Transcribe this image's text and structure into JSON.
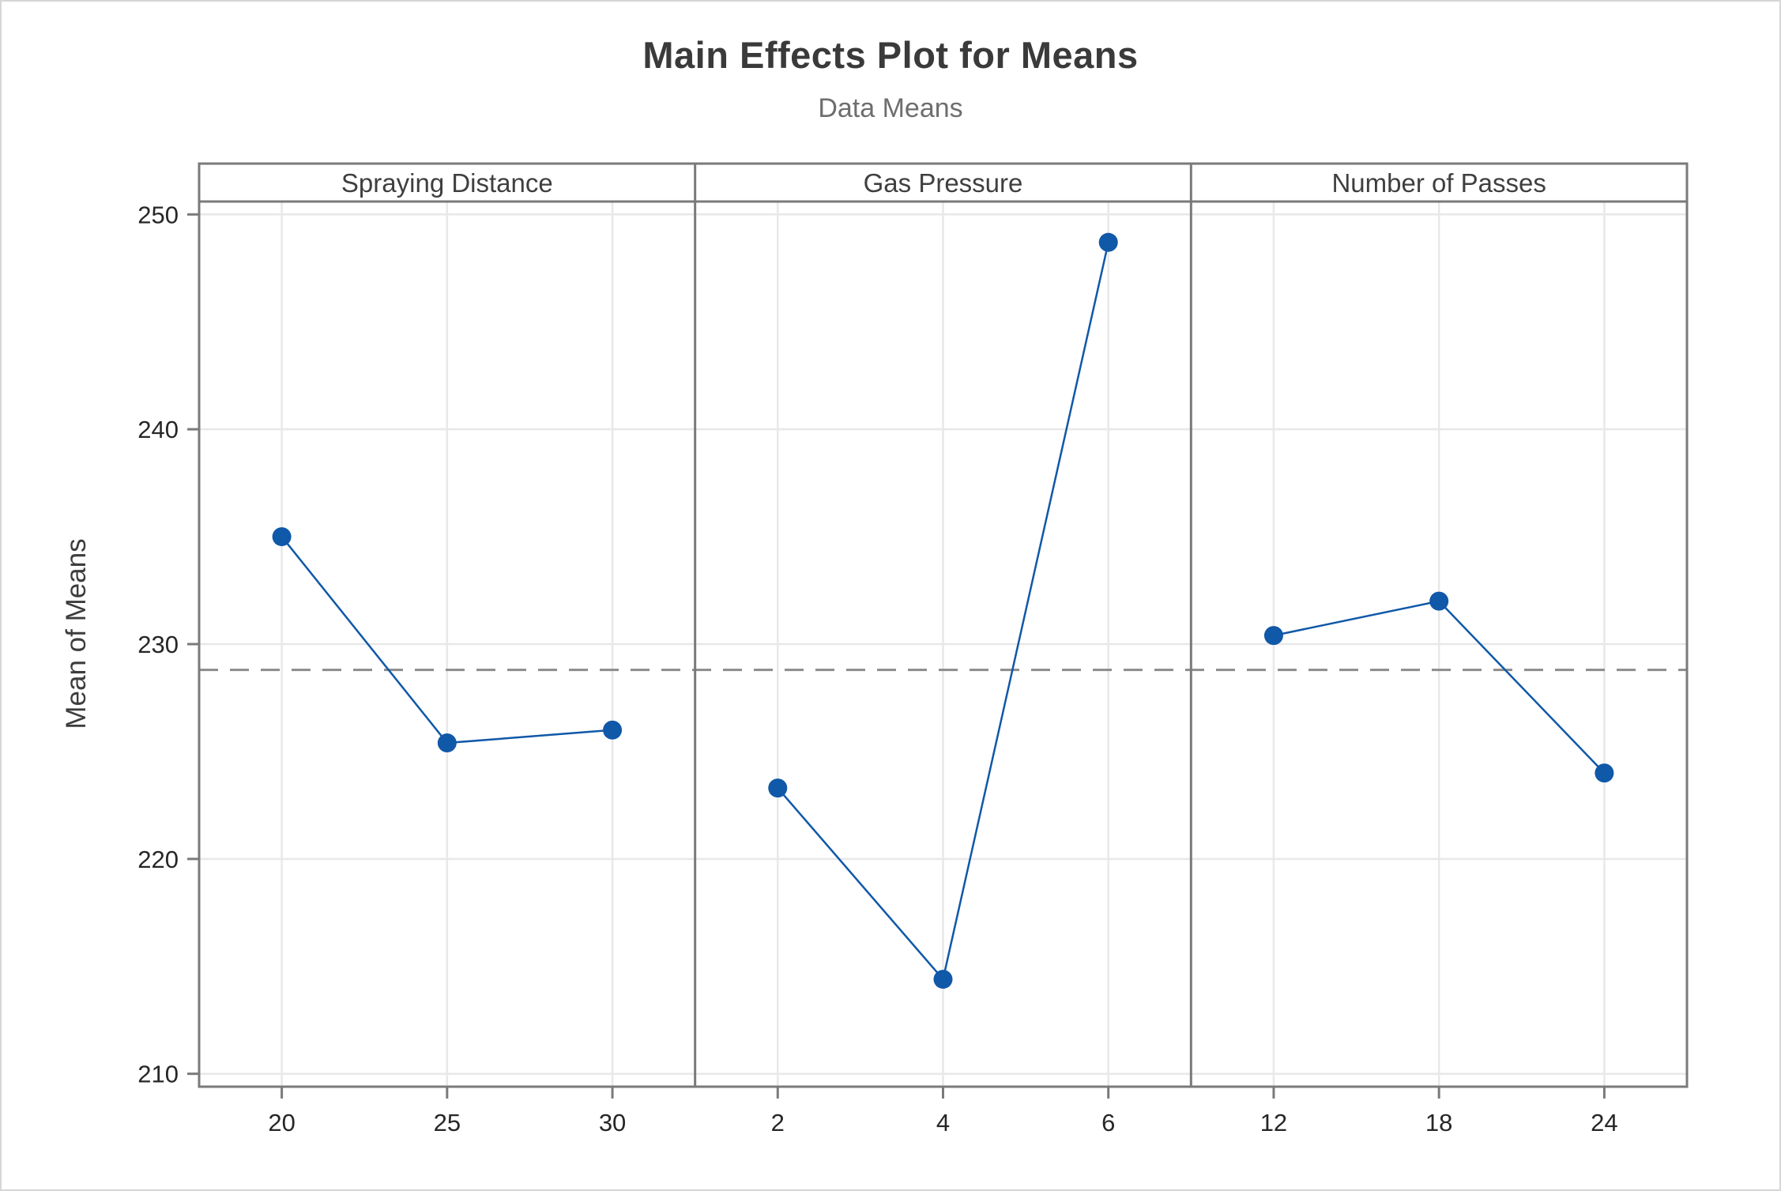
{
  "figure": {
    "title": "Main Effects Plot for Means",
    "subtitle": "Data Means",
    "ylabel": "Mean of Means"
  },
  "chart_data": {
    "type": "line",
    "title": "Main Effects Plot for Means",
    "subtitle": "Data Means",
    "ylabel": "Mean of Means",
    "ylim": [
      209.4,
      250.6
    ],
    "yticks": [
      210,
      220,
      230,
      240,
      250
    ],
    "grid": true,
    "reference_line": {
      "value": 228.8,
      "style": "dashed"
    },
    "panels": [
      {
        "name": "Spraying Distance",
        "categories": [
          "20",
          "25",
          "30"
        ],
        "values": [
          235.0,
          225.4,
          226.0
        ]
      },
      {
        "name": "Gas Pressure",
        "categories": [
          "2",
          "4",
          "6"
        ],
        "values": [
          223.3,
          214.4,
          248.7
        ]
      },
      {
        "name": "Number of Passes",
        "categories": [
          "12",
          "18",
          "24"
        ],
        "values": [
          230.4,
          232.0,
          224.0
        ]
      }
    ],
    "colors": {
      "series": "#1058a8",
      "gridline": "#e8e8e8",
      "axis_border": "#7a7a7a",
      "reference_line": "#8c8c8c",
      "title_text": "#3a3a3a",
      "subtitle_text": "#6e6e6e",
      "tick_text": "#262626"
    }
  }
}
